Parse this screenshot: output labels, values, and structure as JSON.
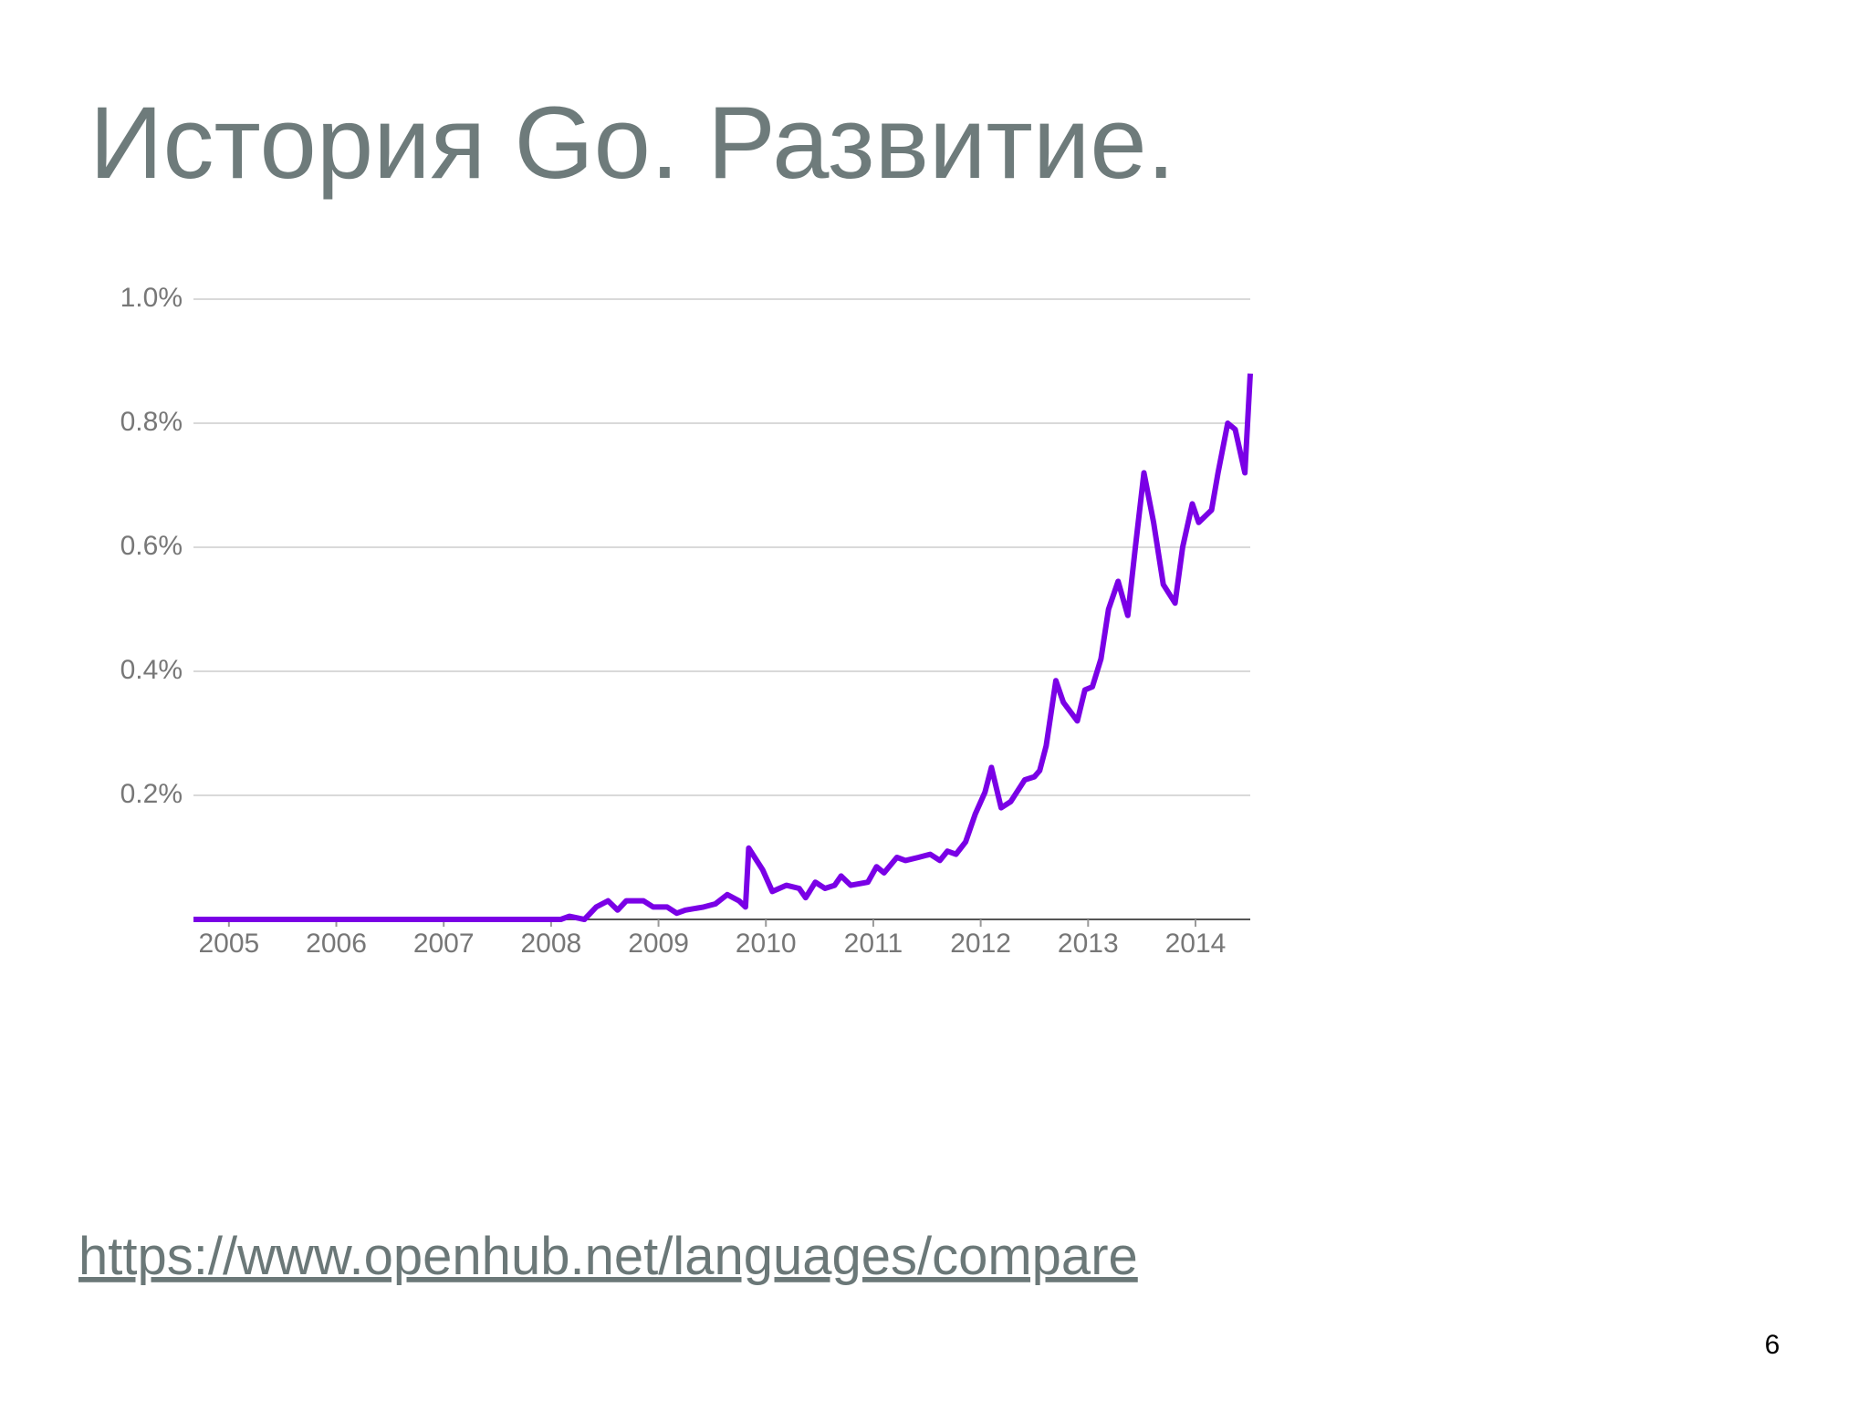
{
  "slide": {
    "title": "История Go. Развитие.",
    "link": "https://www.openhub.net/languages/compare",
    "page_number": 6
  },
  "chart_data": {
    "type": "line",
    "color": "#7a00e6",
    "grid": true,
    "x": [
      2004.67,
      2008.09,
      2008.17,
      2008.31,
      2008.42,
      2008.53,
      2008.62,
      2008.7,
      2008.86,
      2008.95,
      2009.08,
      2009.17,
      2009.25,
      2009.42,
      2009.53,
      2009.64,
      2009.75,
      2009.81,
      2009.84,
      2009.97,
      2010.06,
      2010.19,
      2010.31,
      2010.37,
      2010.46,
      2010.55,
      2010.64,
      2010.7,
      2010.79,
      2010.95,
      2011.03,
      2011.1,
      2011.22,
      2011.3,
      2011.42,
      2011.53,
      2011.62,
      2011.69,
      2011.77,
      2011.86,
      2011.95,
      2012.04,
      2012.1,
      2012.19,
      2012.28,
      2012.41,
      2012.5,
      2012.55,
      2012.61,
      2012.7,
      2012.77,
      2012.9,
      2012.97,
      2013.04,
      2013.12,
      2013.19,
      2013.28,
      2013.37,
      2013.44,
      2013.52,
      2013.61,
      2013.7,
      2013.81,
      2013.88,
      2013.97,
      2014.03,
      2014.15,
      2014.21,
      2014.3,
      2014.37,
      2014.46,
      2014.51
    ],
    "values": [
      0,
      0,
      0.005,
      0,
      0.02,
      0.03,
      0.015,
      0.03,
      0.03,
      0.02,
      0.02,
      0.01,
      0.015,
      0.02,
      0.025,
      0.04,
      0.03,
      0.02,
      0.115,
      0.08,
      0.045,
      0.055,
      0.05,
      0.035,
      0.06,
      0.05,
      0.055,
      0.07,
      0.055,
      0.06,
      0.085,
      0.075,
      0.1,
      0.095,
      0.1,
      0.105,
      0.095,
      0.11,
      0.105,
      0.125,
      0.17,
      0.205,
      0.245,
      0.18,
      0.19,
      0.225,
      0.23,
      0.24,
      0.28,
      0.385,
      0.35,
      0.32,
      0.37,
      0.375,
      0.42,
      0.5,
      0.545,
      0.49,
      0.6,
      0.72,
      0.64,
      0.54,
      0.51,
      0.6,
      0.67,
      0.64,
      0.66,
      0.72,
      0.8,
      0.79,
      0.72,
      0.88
    ],
    "xlim": [
      2004.67,
      2014.51
    ],
    "xticks": [
      2005,
      2006,
      2007,
      2008,
      2009,
      2010,
      2011,
      2012,
      2013,
      2014
    ],
    "ylim": [
      0,
      1.0
    ],
    "yticks": [
      {
        "value": 0.2,
        "label": "0.2%"
      },
      {
        "value": 0.4,
        "label": "0.4%"
      },
      {
        "value": 0.6,
        "label": "0.6%"
      },
      {
        "value": 0.8,
        "label": "0.8%"
      },
      {
        "value": 1.0,
        "label": "1.0%"
      }
    ]
  }
}
